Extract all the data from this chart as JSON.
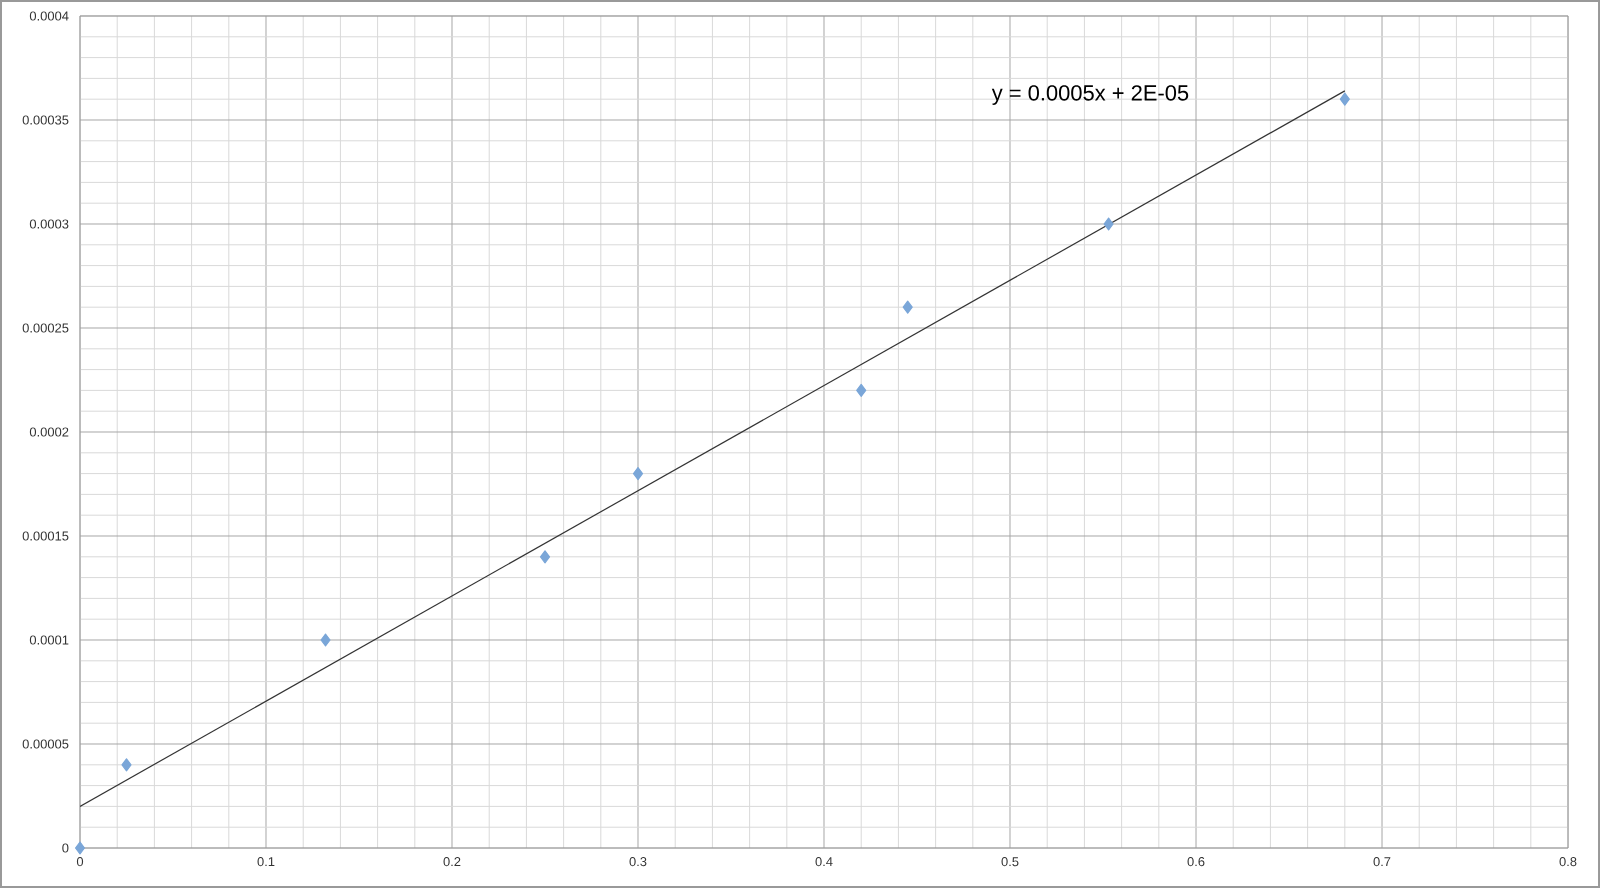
{
  "chart_data": {
    "type": "scatter",
    "annotations": [
      "y = 0.0005x + 2E-05"
    ],
    "xlim": [
      0,
      0.8
    ],
    "xticks": [
      0,
      0.1,
      0.2,
      0.3,
      0.4,
      0.5,
      0.6,
      0.7,
      0.8
    ],
    "ylim": [
      0,
      0.0004
    ],
    "yticks": [
      {
        "value": 0,
        "label": "0"
      },
      {
        "value": 5e-05,
        "label": "0.00005"
      },
      {
        "value": 0.0001,
        "label": "0.0001"
      },
      {
        "value": 0.00015,
        "label": "0.00015"
      },
      {
        "value": 0.0002,
        "label": "0.0002"
      },
      {
        "value": 0.00025,
        "label": "0.00025"
      },
      {
        "value": 0.0003,
        "label": "0.0003"
      },
      {
        "value": 0.00035,
        "label": "0.00035"
      },
      {
        "value": 0.0004,
        "label": "0.0004"
      }
    ],
    "grid": true,
    "series": [
      {
        "marker": "diamond",
        "color": "#7aa6d8",
        "x": [
          0,
          0.025,
          0.132,
          0.25,
          0.3,
          0.42,
          0.445,
          0.553,
          0.68
        ],
        "values": [
          0,
          4e-05,
          0.0001,
          0.00014,
          0.00018,
          0.00022,
          0.00026,
          0.0003,
          0.00036
        ]
      },
      {
        "type": "line",
        "marker": "none",
        "color": "#333333",
        "x": [
          0,
          0.68
        ],
        "values": [
          2e-05,
          0.000364
        ]
      }
    ]
  }
}
